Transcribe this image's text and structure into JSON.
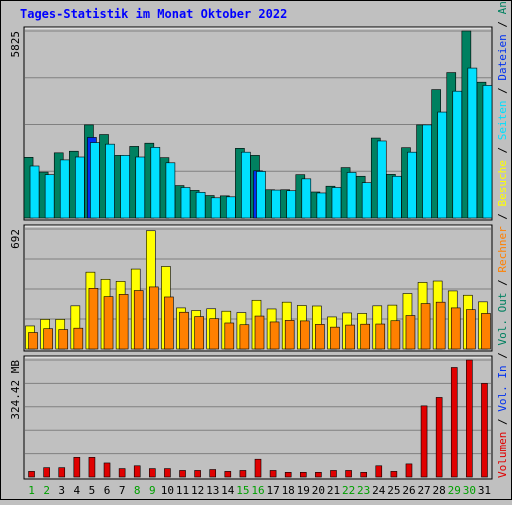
{
  "chart_data": {
    "type": "bar",
    "title": "Tages-Statistik im Monat Oktober 2022",
    "categories": [
      "1",
      "2",
      "3",
      "4",
      "5",
      "6",
      "7",
      "8",
      "9",
      "10",
      "11",
      "12",
      "13",
      "14",
      "15",
      "16",
      "17",
      "18",
      "19",
      "20",
      "21",
      "22",
      "23",
      "24",
      "25",
      "26",
      "27",
      "28",
      "29",
      "30",
      "31"
    ],
    "weekend_days": [
      "1",
      "2",
      "8",
      "9",
      "15",
      "16",
      "22",
      "23",
      "29",
      "30"
    ],
    "panels": [
      {
        "id": "hits",
        "ymax_label": "5825",
        "ymax": 5825,
        "series": [
          {
            "name": "Anfragen",
            "color": "#008060",
            "values": [
              1890,
              1430,
              2030,
              2080,
              2900,
              2600,
              1950,
              2230,
              2330,
              1880,
              1010,
              860,
              700,
              690,
              2170,
              1950,
              880,
              880,
              1350,
              810,
              990,
              1570,
              1300,
              2490,
              1360,
              2190,
              2900,
              4000,
              4530,
              5825,
              4230
            ]
          },
          {
            "name": "Dateien",
            "color": "#0030f0",
            "values": [
              0,
              0,
              0,
              0,
              2510,
              0,
              0,
              0,
              0,
              0,
              0,
              0,
              0,
              0,
              0,
              1470,
              0,
              0,
              0,
              0,
              0,
              0,
              0,
              0,
              0,
              0,
              0,
              0,
              0,
              0,
              0
            ]
          },
          {
            "name": "Seiten",
            "color": "#00e0ff",
            "values": [
              1620,
              1350,
              1810,
              1900,
              2350,
              2300,
              1950,
              1900,
              2200,
              1720,
              950,
              800,
              630,
              660,
              2050,
              1450,
              870,
              850,
              1220,
              780,
              950,
              1420,
              1100,
              2400,
              1300,
              2050,
              2900,
              3300,
              3950,
              4670,
              4130
            ]
          }
        ]
      },
      {
        "id": "visits",
        "ymax_label": "692",
        "ymax": 692,
        "series": [
          {
            "name": "Besuche",
            "color": "#ffff00",
            "values": [
              133,
              171,
              171,
              249,
              443,
              402,
              390,
              461,
              682,
              476,
              237,
              222,
              232,
              218,
              210,
              281,
              231,
              270,
              251,
              248,
              185,
              208,
              205,
              249,
              253,
              320,
              384,
              392,
              335,
              310,
              272
            ]
          },
          {
            "name": "Rechner",
            "color": "#ff8000",
            "values": [
              95,
              117,
              112,
              120,
              350,
              302,
              315,
              337,
              358,
              300,
              212,
              187,
              175,
              150,
              140,
              190,
              156,
              165,
              162,
              142,
              126,
              138,
              143,
              144,
              163,
              193,
              262,
              270,
              237,
              227,
              205
            ]
          }
        ]
      },
      {
        "id": "volume",
        "ymax_label": "324.42 MB",
        "series": [
          {
            "name": "Volumen",
            "color": "#e00000",
            "values": [
              6,
              10,
              10,
              21,
              21,
              15,
              9,
              12,
              9,
              9,
              7,
              7,
              8,
              6,
              7,
              19,
              7,
              5,
              5,
              5,
              7,
              7,
              5,
              12,
              6,
              14,
              76,
              85,
              117,
              125,
              100
            ]
          }
        ]
      }
    ],
    "right_legend": [
      {
        "label": "Volumen",
        "color": "#e00000"
      },
      {
        "label": "Vol. In",
        "color": "#0030f0"
      },
      {
        "label": "Vol. Out",
        "color": "#008060"
      },
      {
        "label": "Rechner",
        "color": "#ff8000"
      },
      {
        "label": "Besuche",
        "color": "#ffff00"
      },
      {
        "label": "Seiten",
        "color": "#00e0ff"
      },
      {
        "label": "Dateien",
        "color": "#0030f0"
      },
      {
        "label": "Anfragen",
        "color": "#008060"
      }
    ],
    "legend_separator": " / ",
    "colors": {
      "title": "#0000ff",
      "weekday_label": "#000000",
      "weekend_label": "#00a000",
      "background": "#c0c0c0",
      "panel": "#c0c0c0",
      "grid": "#808080"
    }
  }
}
